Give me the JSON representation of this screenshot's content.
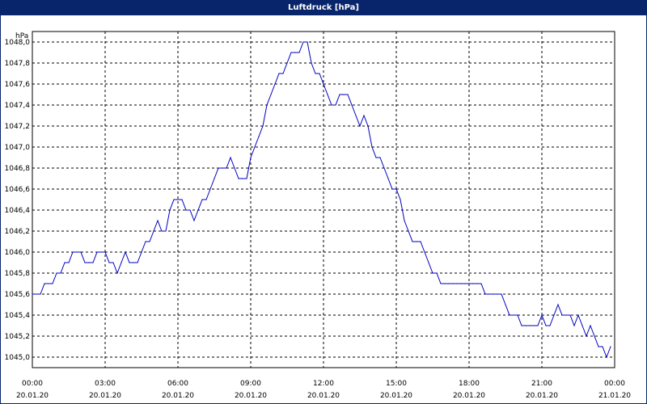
{
  "window": {
    "title": "Luftdruck [hPa]"
  },
  "colors": {
    "title_bar": "#08246b",
    "line": "#0000c0",
    "grid": "#000000",
    "background": "#ffffff"
  },
  "chart_data": {
    "type": "line",
    "title": "Luftdruck [hPa]",
    "ylabel": "hPa",
    "xlabel": "",
    "ylim": [
      1044.9,
      1048.1
    ],
    "xlim": [
      "20.01.20 00:00",
      "21.01.20 00:00"
    ],
    "grid": true,
    "y_ticks": [
      "1045,0",
      "1045,2",
      "1045,4",
      "1045,6",
      "1045,8",
      "1046,0",
      "1046,2",
      "1046,4",
      "1046,6",
      "1046,8",
      "1047,0",
      "1047,2",
      "1047,4",
      "1047,6",
      "1047,8",
      "1048,0"
    ],
    "x_ticks": [
      {
        "time": "00:00",
        "date": "20.01.20"
      },
      {
        "time": "03:00",
        "date": "20.01.20"
      },
      {
        "time": "06:00",
        "date": "20.01.20"
      },
      {
        "time": "09:00",
        "date": "20.01.20"
      },
      {
        "time": "12:00",
        "date": "20.01.20"
      },
      {
        "time": "15:00",
        "date": "20.01.20"
      },
      {
        "time": "18:00",
        "date": "20.01.20"
      },
      {
        "time": "21:00",
        "date": "20.01.20"
      },
      {
        "time": "00:00",
        "date": "21.01.20"
      }
    ],
    "series": [
      {
        "x": [
          "00:00",
          "00:20",
          "00:30",
          "00:50",
          "01:00",
          "01:10",
          "01:20",
          "01:30",
          "01:40",
          "01:50",
          "02:00",
          "02:10",
          "02:20",
          "02:30",
          "02:40",
          "02:50",
          "03:00",
          "03:10",
          "03:20",
          "03:30",
          "03:40",
          "03:50",
          "04:00",
          "04:10",
          "04:20",
          "04:30",
          "04:40",
          "04:50",
          "05:00",
          "05:10",
          "05:20",
          "05:30",
          "05:40",
          "05:50",
          "06:00",
          "06:10",
          "06:20",
          "06:30",
          "06:40",
          "06:50",
          "07:00",
          "07:10",
          "07:20",
          "07:30",
          "07:40",
          "07:50",
          "08:00",
          "08:10",
          "08:20",
          "08:30",
          "08:40",
          "08:50",
          "09:00",
          "09:10",
          "09:20",
          "09:30",
          "09:40",
          "09:50",
          "10:00",
          "10:10",
          "10:20",
          "10:30",
          "10:40",
          "10:50",
          "11:00",
          "11:10",
          "11:20",
          "11:30",
          "11:40",
          "11:50",
          "12:00",
          "12:10",
          "12:20",
          "12:30",
          "12:40",
          "12:50",
          "13:00",
          "13:10",
          "13:20",
          "13:30",
          "13:40",
          "13:50",
          "14:00",
          "14:10",
          "14:20",
          "14:30",
          "14:40",
          "14:50",
          "15:00",
          "15:10",
          "15:20",
          "15:30",
          "15:40",
          "15:50",
          "16:00",
          "16:10",
          "16:20",
          "16:30",
          "16:40",
          "16:50",
          "17:00",
          "17:10",
          "17:20",
          "17:30",
          "17:40",
          "17:50",
          "18:00",
          "18:10",
          "18:20",
          "18:30",
          "18:40",
          "18:50",
          "19:00",
          "19:10",
          "19:20",
          "19:30",
          "19:40",
          "19:50",
          "20:00",
          "20:10",
          "20:20",
          "20:30",
          "20:40",
          "20:50",
          "21:00",
          "21:10",
          "21:20",
          "21:30",
          "21:40",
          "21:50",
          "22:00",
          "22:10",
          "22:20",
          "22:30",
          "22:40",
          "22:50",
          "23:00",
          "23:10",
          "23:20",
          "23:30",
          "23:40",
          "23:50"
        ],
        "values": [
          1045.6,
          1045.6,
          1045.7,
          1045.7,
          1045.8,
          1045.8,
          1045.9,
          1045.9,
          1046.0,
          1046.0,
          1046.0,
          1045.9,
          1045.9,
          1045.9,
          1046.0,
          1046.0,
          1046.0,
          1045.9,
          1045.9,
          1045.8,
          1045.9,
          1046.0,
          1045.9,
          1045.9,
          1045.9,
          1046.0,
          1046.1,
          1046.1,
          1046.2,
          1046.3,
          1046.2,
          1046.2,
          1046.4,
          1046.5,
          1046.5,
          1046.5,
          1046.4,
          1046.4,
          1046.3,
          1046.4,
          1046.5,
          1046.5,
          1046.6,
          1046.7,
          1046.8,
          1046.8,
          1046.8,
          1046.9,
          1046.8,
          1046.7,
          1046.7,
          1046.7,
          1046.9,
          1047.0,
          1047.1,
          1047.2,
          1047.4,
          1047.5,
          1047.6,
          1047.7,
          1047.7,
          1047.8,
          1047.9,
          1047.9,
          1047.9,
          1048.0,
          1048.0,
          1047.8,
          1047.7,
          1047.7,
          1047.6,
          1047.5,
          1047.4,
          1047.4,
          1047.5,
          1047.5,
          1047.5,
          1047.4,
          1047.3,
          1047.2,
          1047.3,
          1047.2,
          1047.0,
          1046.9,
          1046.9,
          1046.8,
          1046.7,
          1046.6,
          1046.6,
          1046.5,
          1046.3,
          1046.2,
          1046.1,
          1046.1,
          1046.1,
          1046.0,
          1045.9,
          1045.8,
          1045.8,
          1045.7,
          1045.7,
          1045.7,
          1045.7,
          1045.7,
          1045.7,
          1045.7,
          1045.7,
          1045.7,
          1045.7,
          1045.7,
          1045.6,
          1045.6,
          1045.6,
          1045.6,
          1045.6,
          1045.5,
          1045.4,
          1045.4,
          1045.4,
          1045.3,
          1045.3,
          1045.3,
          1045.3,
          1045.3,
          1045.4,
          1045.3,
          1045.3,
          1045.4,
          1045.5,
          1045.4,
          1045.4,
          1045.4,
          1045.3,
          1045.4,
          1045.3,
          1045.2,
          1045.3,
          1045.2,
          1045.1,
          1045.1,
          1045.0,
          1045.1
        ]
      }
    ]
  }
}
